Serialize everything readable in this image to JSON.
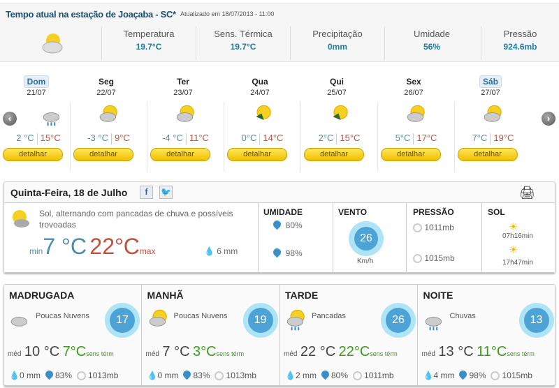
{
  "current": {
    "title": "Tempo atual na estação de Joaçaba - SC*",
    "updated": "Atualizado em 18/07/2013 - 11:00",
    "icon": "sun-cloud-icon",
    "stats": [
      {
        "label": "Temperatura",
        "value": "19.7°C"
      },
      {
        "label": "Sens. Térmica",
        "value": "19.7°C"
      },
      {
        "label": "Precipitação",
        "value": "0mm"
      },
      {
        "label": "Umidade",
        "value": "56%"
      },
      {
        "label": "Pressão",
        "value": "924.6mb"
      }
    ]
  },
  "forecast": {
    "button_label": "detalhar",
    "days": [
      {
        "name": "Dom",
        "date": "21/07",
        "min": "2 °C",
        "max": "15°C",
        "icon": "rain-icon",
        "highlight": true
      },
      {
        "name": "Seg",
        "date": "22/07",
        "min": "-3 °C",
        "max": "9°C",
        "icon": "sun-cloud-icon"
      },
      {
        "name": "Ter",
        "date": "23/07",
        "min": "-4 °C",
        "max": "11°C",
        "icon": "sun-cloud-icon"
      },
      {
        "name": "Qua",
        "date": "24/07",
        "min": "0°C",
        "max": "14°C",
        "icon": "sun-frost-icon"
      },
      {
        "name": "Qui",
        "date": "25/07",
        "min": "2°C",
        "max": "15°C",
        "icon": "sun-frost-icon"
      },
      {
        "name": "Sex",
        "date": "26/07",
        "min": "5°C",
        "max": "17°C",
        "icon": "sun-cloud-icon"
      },
      {
        "name": "Sáb",
        "date": "27/07",
        "min": "7°C",
        "max": "19°C",
        "icon": "sun-cloud-icon",
        "highlight": true
      }
    ]
  },
  "today": {
    "title": "Quinta-Feira, 18 de Julho",
    "facebook": "f",
    "description": "Sol, alternando com pancadas de chuva e possíveis trovoadas",
    "min_label": "min",
    "min": "7 °C",
    "max": "22°C",
    "max_label": "max",
    "rain": "6 mm",
    "humidity": {
      "label": "UMIDADE",
      "min": "80%",
      "max": "98%"
    },
    "wind": {
      "label": "VENTO",
      "value": "26",
      "unit": "Km/h"
    },
    "pressure": {
      "label": "PRESSÃO",
      "min": "1011mb",
      "max": "1015mb"
    },
    "sun": {
      "label": "SOL",
      "rise": "07h16min",
      "set": "17h47min"
    }
  },
  "periods": [
    {
      "name": "MADRUGADA",
      "desc": "Poucas Nuvens",
      "wind": "17",
      "med_label": "méd",
      "med": "10 °C",
      "feel": "7°C",
      "feel_label": "sens térm",
      "rain": "0 mm",
      "hum": "83%",
      "pres": "1013mb",
      "icon": "cloud-icon"
    },
    {
      "name": "MANHÃ",
      "desc": "Poucas Nuvens",
      "wind": "19",
      "med_label": "méd",
      "med": "7 °C",
      "feel": "3°C",
      "feel_label": "sens térm",
      "rain": "0 mm",
      "hum": "83%",
      "pres": "1013mb",
      "icon": "sun-cloud-icon"
    },
    {
      "name": "TARDE",
      "desc": "Pancadas",
      "wind": "26",
      "med_label": "méd",
      "med": "22 °C",
      "feel": "22°C",
      "feel_label": "sens térm",
      "rain": "2 mm",
      "hum": "80%",
      "pres": "1011mb",
      "icon": "sun-rain-icon"
    },
    {
      "name": "NOITE",
      "desc": "Chuvas",
      "wind": "13",
      "med_label": "méd",
      "med": "13 °C",
      "feel": "11°C",
      "feel_label": "sens térm",
      "rain": "4 mm",
      "hum": "98%",
      "pres": "1015mb",
      "icon": "rain-icon"
    }
  ],
  "colors": {
    "min": "#4a8bb0",
    "max": "#c2503a",
    "feel": "#3a9a1a",
    "accent": "#1d7ca0",
    "button": "#f0c000"
  }
}
